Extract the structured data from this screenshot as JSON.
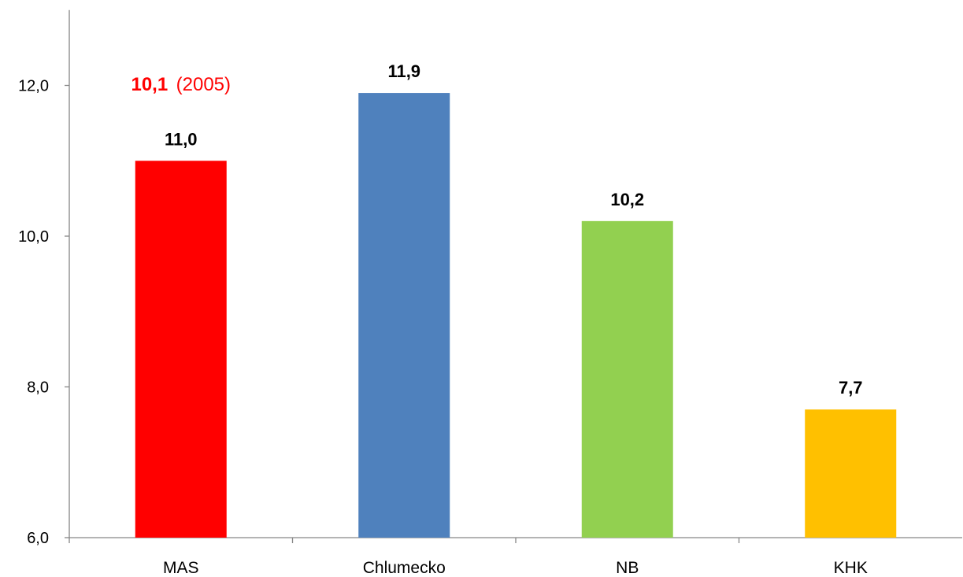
{
  "chart_data": {
    "type": "bar",
    "categories": [
      "MAS",
      "Chlumecko",
      "NB",
      "KHK"
    ],
    "values": [
      11.0,
      11.9,
      10.2,
      7.7
    ],
    "value_labels": [
      "11,0",
      "11,9",
      "10,2",
      "7,7"
    ],
    "colors": [
      "#ff0000",
      "#4f81bd",
      "#92d050",
      "#ffc000"
    ],
    "ylim": [
      6.0,
      13.0
    ],
    "yticks": [
      6.0,
      8.0,
      10.0,
      12.0
    ],
    "ytick_labels": [
      "6,0",
      "8,0",
      "10,0",
      "12,0"
    ],
    "grid": false,
    "legend": "none",
    "annotation": {
      "value_text": "10,1",
      "suffix_text": "(2005)",
      "color": "#ff0000",
      "category": "MAS"
    }
  }
}
